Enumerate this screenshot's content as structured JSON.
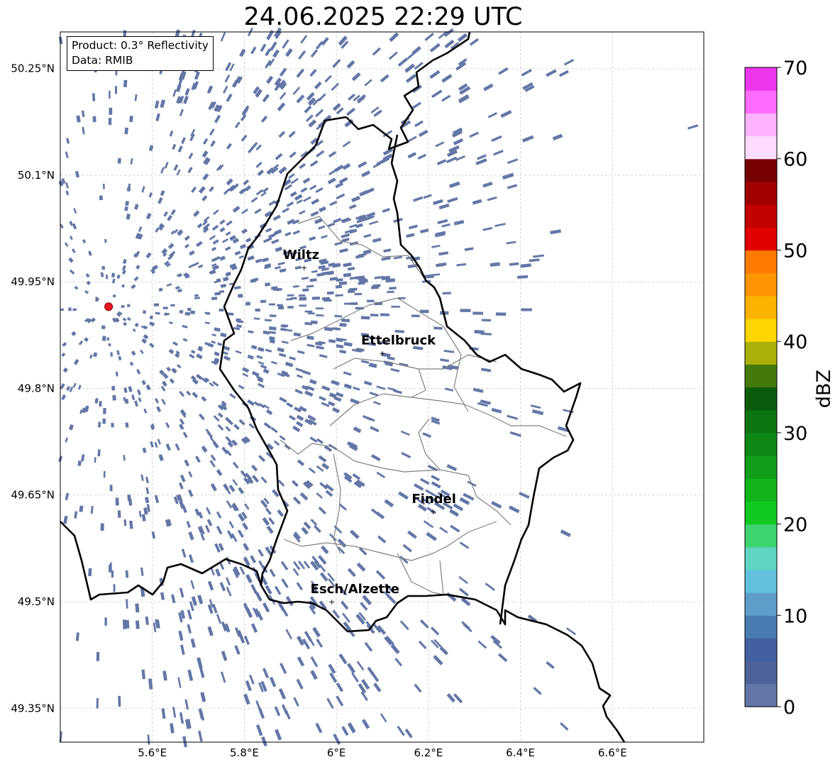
{
  "title": "24.06.2025 22:29 UTC",
  "info": {
    "product": "Product: 0.3° Reflectivity",
    "source": "Data: RMIB"
  },
  "map": {
    "lon_range": [
      5.4,
      6.8
    ],
    "lat_range": [
      49.3,
      50.3
    ],
    "x_ticks": [
      {
        "value": 5.6,
        "label": "5.6°E"
      },
      {
        "value": 5.8,
        "label": "5.8°E"
      },
      {
        "value": 6.0,
        "label": "6°E"
      },
      {
        "value": 6.2,
        "label": "6.2°E"
      },
      {
        "value": 6.4,
        "label": "6.4°E"
      },
      {
        "value": 6.6,
        "label": "6.6°E"
      }
    ],
    "y_ticks": [
      {
        "value": 50.25,
        "label": "50.25°N"
      },
      {
        "value": 50.1,
        "label": "50.1°N"
      },
      {
        "value": 49.95,
        "label": "49.95°N"
      },
      {
        "value": 49.8,
        "label": "49.8°N"
      },
      {
        "value": 49.65,
        "label": "49.65°N"
      },
      {
        "value": 49.5,
        "label": "49.5°N"
      },
      {
        "value": 49.35,
        "label": "49.35°N"
      }
    ],
    "radar_site": {
      "lon": 5.505,
      "lat": 49.915
    },
    "cities": [
      {
        "name": "Wiltz",
        "lon": 5.93,
        "lat": 49.97
      },
      {
        "name": "Ettelbruck",
        "lon": 6.1,
        "lat": 49.85
      },
      {
        "name": "Findel",
        "lon": 6.21,
        "lat": 49.627
      },
      {
        "name": "Esch/Alzette",
        "lon": 5.99,
        "lat": 49.5
      }
    ],
    "echo_color": "#6376a6",
    "border_color": "#000000",
    "canton_color": "#808080"
  },
  "colorbar": {
    "label": "dBZ",
    "ticks": [
      "0",
      "10",
      "20",
      "30",
      "40",
      "50",
      "60",
      "70"
    ],
    "colors": [
      "#6376a6",
      "#4f639b",
      "#425fa1",
      "#4a7bb2",
      "#5c9ec8",
      "#62c0dc",
      "#5dd5c2",
      "#3dd36e",
      "#11c921",
      "#12b51c",
      "#109e19",
      "#0e8815",
      "#0c7511",
      "#0a5c0c",
      "#457a0a",
      "#a9b00a",
      "#ffd500",
      "#fcb300",
      "#fe9500",
      "#ff7b00",
      "#e10000",
      "#c10000",
      "#a00000",
      "#770000",
      "#ffdcff",
      "#ffb3ff",
      "#ff6bff",
      "#ec36ec"
    ]
  }
}
